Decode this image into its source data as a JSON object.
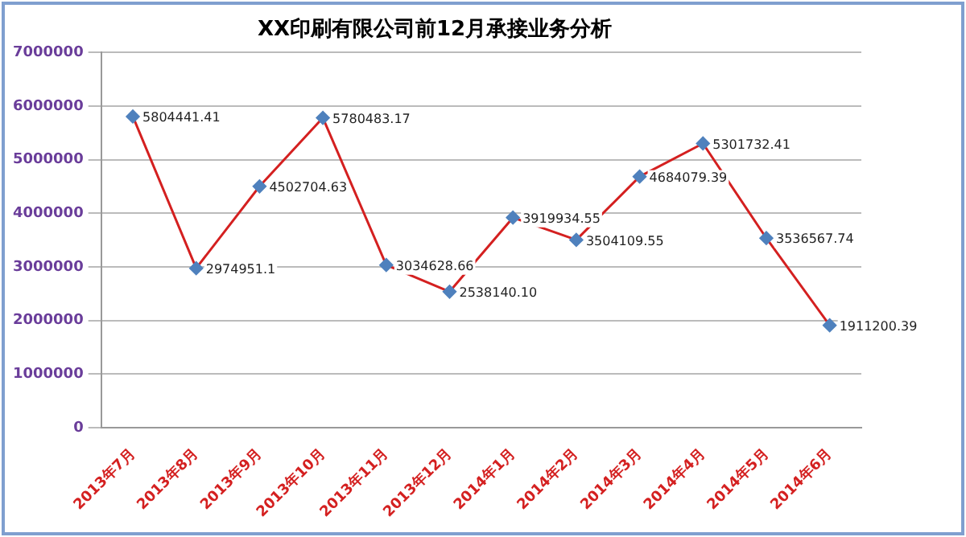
{
  "chart_data": {
    "type": "line",
    "title": "XX印刷有限公司前12月承接业务分析",
    "categories": [
      "2013年7月",
      "2013年8月",
      "2013年9月",
      "2013年10月",
      "2013年11月",
      "2013年12月",
      "2014年1月",
      "2014年2月",
      "2014年3月",
      "2014年4月",
      "2014年5月",
      "2014年6月"
    ],
    "series": [
      {
        "color": "#d42020",
        "values": [
          5804441.41,
          2974951.1,
          4502704.63,
          5780483.17,
          3034628.66,
          2538140.1,
          3919934.55,
          3504109.55,
          4684079.39,
          5301732.41,
          3536567.74,
          1911200.39
        ],
        "value_labels": [
          "5804441.41",
          "2974951.1",
          "4502704.63",
          "5780483.17",
          "3034628.66",
          "2538140.10",
          "3919934.55",
          "3504109.55",
          "4684079.39",
          "5301732.41",
          "3536567.74",
          "1911200.39"
        ]
      }
    ],
    "ylim": [
      0,
      7000000
    ],
    "yticks": [
      0,
      1000000,
      2000000,
      3000000,
      4000000,
      5000000,
      6000000,
      7000000
    ],
    "grid": "y",
    "legend": false,
    "marker": "diamond",
    "line_style": "solid"
  }
}
